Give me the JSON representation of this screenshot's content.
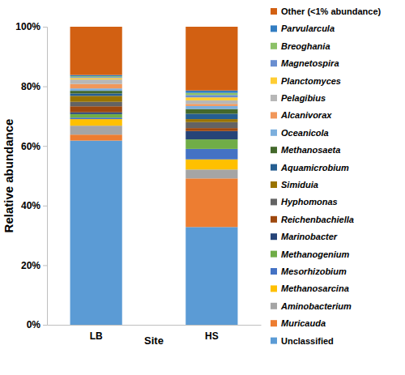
{
  "chart_data": {
    "type": "bar",
    "stacked": true,
    "legend": "right",
    "x_label": "Site",
    "y_label": "Relative abundance",
    "categories": [
      "LB",
      "HS"
    ],
    "ylim": [
      0,
      100
    ],
    "yticks": [
      {
        "value": 0,
        "label": "0%"
      },
      {
        "value": 20,
        "label": "20%"
      },
      {
        "value": 40,
        "label": "40%"
      },
      {
        "value": 60,
        "label": "60%"
      },
      {
        "value": 80,
        "label": "80%"
      },
      {
        "value": 100,
        "label": "100%"
      }
    ],
    "series": [
      {
        "name": "Unclassified",
        "color": "#5B9BD5",
        "values": [
          61.8,
          32.8
        ]
      },
      {
        "name": "Muricauda",
        "color": "#ED7D31",
        "values": [
          2.0,
          16.3
        ]
      },
      {
        "name": "Aminobacterium",
        "color": "#A5A5A5",
        "values": [
          3.0,
          3.0
        ]
      },
      {
        "name": "Methanosarcina",
        "color": "#FFC000",
        "values": [
          2.2,
          3.4
        ]
      },
      {
        "name": "Mesorhizobium",
        "color": "#4472C4",
        "values": [
          0.5,
          3.5
        ]
      },
      {
        "name": "Methanogenium",
        "color": "#70AD47",
        "values": [
          1.2,
          3.2
        ]
      },
      {
        "name": "Marinobacter",
        "color": "#264478",
        "values": [
          0.6,
          2.8
        ]
      },
      {
        "name": "Reichenbachiella",
        "color": "#9E480E",
        "values": [
          2.0,
          1.0
        ]
      },
      {
        "name": "Hyphomonas",
        "color": "#636363",
        "values": [
          1.5,
          2.0
        ]
      },
      {
        "name": "Simiduia",
        "color": "#997300",
        "values": [
          2.0,
          1.0
        ]
      },
      {
        "name": "Aquamicrobium",
        "color": "#255E91",
        "values": [
          0.8,
          1.8
        ]
      },
      {
        "name": "Methanosaeta",
        "color": "#43682B",
        "values": [
          0.9,
          1.6
        ]
      },
      {
        "name": "Oceanicola",
        "color": "#7CAFDD",
        "values": [
          0.8,
          1.0
        ]
      },
      {
        "name": "Alcanivorax",
        "color": "#F1975A",
        "values": [
          1.5,
          0.7
        ]
      },
      {
        "name": "Pelagibius",
        "color": "#B7B7B7",
        "values": [
          1.5,
          1.2
        ]
      },
      {
        "name": "Planctomyces",
        "color": "#FFCD33",
        "values": [
          0.5,
          1.0
        ]
      },
      {
        "name": "Magnetospira",
        "color": "#698ED0",
        "values": [
          0.3,
          0.8
        ]
      },
      {
        "name": "Breoghania",
        "color": "#8CC168",
        "values": [
          0.3,
          0.7
        ]
      },
      {
        "name": "Parvularcula",
        "color": "#327DC2",
        "values": [
          0.4,
          0.8
        ]
      },
      {
        "name": "Other (<1% abundance)",
        "color": "#D26012",
        "values": [
          16.2,
          21.4
        ]
      }
    ]
  }
}
